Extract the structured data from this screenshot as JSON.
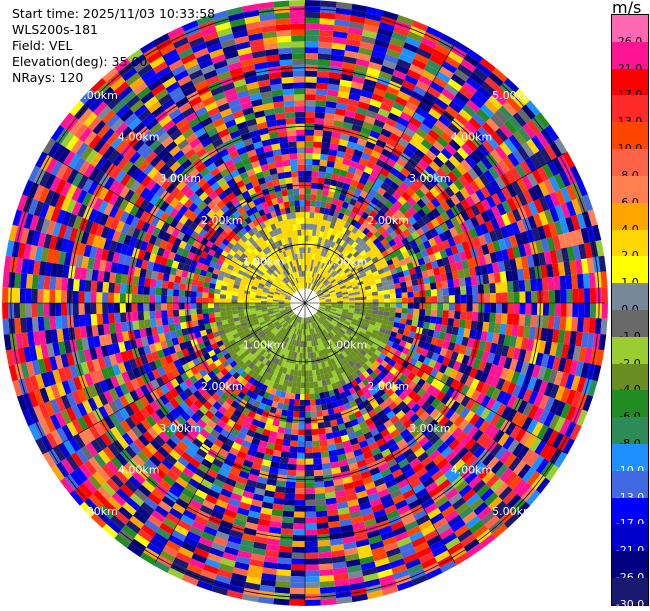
{
  "info": {
    "start_time": "Start time: 2025/11/03 10:33:58",
    "instrument": "WLS200s-181",
    "field": "Field: VEL",
    "elevation": "Elevation(deg): 35.00",
    "nrays": "NRays: 120"
  },
  "colorbar": {
    "unit": "m/s",
    "ticks": [
      "26.0",
      "21.0",
      "17.0",
      "13.0",
      "10.0",
      "8.0",
      "6.0",
      "4.0",
      "2.0",
      "1.0",
      "0.0",
      "-1.0",
      "-2.0",
      "-4.0",
      "-6.0",
      "-8.0",
      "-10.0",
      "-13.0",
      "-17.0",
      "-21.0",
      "-26.0",
      "-30.0"
    ],
    "colors": [
      "#ff69b4",
      "#ff1493",
      "#ff0000",
      "#ff2a2a",
      "#ff4500",
      "#ff6347",
      "#ff7f50",
      "#ffa500",
      "#ffd700",
      "#ffff00",
      "#778899",
      "#696969",
      "#9acd32",
      "#6b8e23",
      "#228b22",
      "#2e8b57",
      "#1e90ff",
      "#4169e1",
      "#0000ff",
      "#0000cd",
      "#000080",
      "#191970"
    ],
    "tick_text_colors": [
      "#000000",
      "#000000",
      "#000000",
      "#000000",
      "#000000",
      "#000000",
      "#000000",
      "#000000",
      "#000000",
      "#000000",
      "#000000",
      "#000000",
      "#000000",
      "#000000",
      "#000000",
      "#000000",
      "#ffffff",
      "#ffffff",
      "#ffffff",
      "#ffffff",
      "#ffffff",
      "#ffffff"
    ]
  },
  "chart_data": {
    "type": "heatmap",
    "projection": "polar PPI",
    "field": "VEL",
    "unit": "m/s",
    "nrays": 120,
    "range_rings_km": [
      1,
      2,
      3,
      4,
      5
    ],
    "ring_labels": [
      "1.00km",
      "2.00km",
      "3.00km",
      "4.00km",
      "5.00km"
    ],
    "max_range_km": 5.0,
    "gates_km": [
      0.3,
      0.4,
      0.5,
      0.6,
      0.7,
      0.8,
      0.9,
      1.0,
      1.1,
      1.2,
      1.3,
      1.4,
      1.5,
      1.6,
      1.7,
      1.8,
      1.9,
      2.0,
      2.1,
      2.2,
      2.3,
      2.4,
      2.5,
      2.6,
      2.7,
      2.8,
      2.9,
      3.0,
      3.1,
      3.2,
      3.3,
      3.4,
      3.5,
      3.6,
      3.7,
      3.8,
      3.9,
      4.0,
      4.1,
      4.2,
      4.3,
      4.4,
      4.5,
      4.6,
      4.7,
      4.8,
      4.9,
      5.0,
      5.1
    ],
    "near_field": {
      "range_km": [
        0.0,
        1.5
      ],
      "northern_half_velocity_range": [
        0.0,
        4.0
      ],
      "southern_half_velocity_range": [
        -4.0,
        -1.0
      ]
    },
    "far_field": {
      "range_km": [
        1.5,
        5.0
      ],
      "velocity": "noise spanning -30.0 to 26.0"
    },
    "colormap_bounds": [
      -30.0,
      -26.0,
      -21.0,
      -17.0,
      -13.0,
      -10.0,
      -8.0,
      -6.0,
      -4.0,
      -2.0,
      -1.0,
      0.0,
      1.0,
      2.0,
      4.0,
      6.0,
      8.0,
      10.0,
      13.0,
      17.0,
      21.0,
      26.0
    ]
  }
}
